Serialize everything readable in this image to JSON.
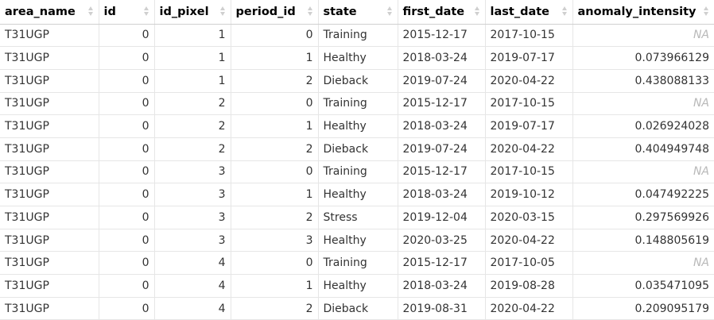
{
  "table": {
    "columns": [
      {
        "key": "area_name",
        "label": "area_name",
        "align": "left"
      },
      {
        "key": "id",
        "label": "id",
        "align": "right"
      },
      {
        "key": "id_pixel",
        "label": "id_pixel",
        "align": "right"
      },
      {
        "key": "period_id",
        "label": "period_id",
        "align": "right"
      },
      {
        "key": "state",
        "label": "state",
        "align": "left"
      },
      {
        "key": "first_date",
        "label": "first_date",
        "align": "left"
      },
      {
        "key": "last_date",
        "label": "last_date",
        "align": "left"
      },
      {
        "key": "anomaly_intensity",
        "label": "anomaly_intensity",
        "align": "right"
      }
    ],
    "rows": [
      [
        "T31UGP",
        "0",
        "1",
        "0",
        "Training",
        "2015-12-17",
        "2017-10-15",
        "NA"
      ],
      [
        "T31UGP",
        "0",
        "1",
        "1",
        "Healthy",
        "2018-03-24",
        "2019-07-17",
        "0.073966129"
      ],
      [
        "T31UGP",
        "0",
        "1",
        "2",
        "Dieback",
        "2019-07-24",
        "2020-04-22",
        "0.438088133"
      ],
      [
        "T31UGP",
        "0",
        "2",
        "0",
        "Training",
        "2015-12-17",
        "2017-10-15",
        "NA"
      ],
      [
        "T31UGP",
        "0",
        "2",
        "1",
        "Healthy",
        "2018-03-24",
        "2019-07-17",
        "0.026924028"
      ],
      [
        "T31UGP",
        "0",
        "2",
        "2",
        "Dieback",
        "2019-07-24",
        "2020-04-22",
        "0.404949748"
      ],
      [
        "T31UGP",
        "0",
        "3",
        "0",
        "Training",
        "2015-12-17",
        "2017-10-15",
        "NA"
      ],
      [
        "T31UGP",
        "0",
        "3",
        "1",
        "Healthy",
        "2018-03-24",
        "2019-10-12",
        "0.047492225"
      ],
      [
        "T31UGP",
        "0",
        "3",
        "2",
        "Stress",
        "2019-12-04",
        "2020-03-15",
        "0.297569926"
      ],
      [
        "T31UGP",
        "0",
        "3",
        "3",
        "Healthy",
        "2020-03-25",
        "2020-04-22",
        "0.148805619"
      ],
      [
        "T31UGP",
        "0",
        "4",
        "0",
        "Training",
        "2015-12-17",
        "2017-10-05",
        "NA"
      ],
      [
        "T31UGP",
        "0",
        "4",
        "1",
        "Healthy",
        "2018-03-24",
        "2019-08-28",
        "0.035471095"
      ],
      [
        "T31UGP",
        "0",
        "4",
        "2",
        "Dieback",
        "2019-08-31",
        "2020-04-22",
        "0.209095179"
      ]
    ],
    "na_label": "NA",
    "colors": {
      "header_text": "#000000",
      "cell_text": "#333333",
      "na_text": "#b8b8b8",
      "grid": "#e6e6e6",
      "sort_icon": "#cfcfcf"
    }
  }
}
